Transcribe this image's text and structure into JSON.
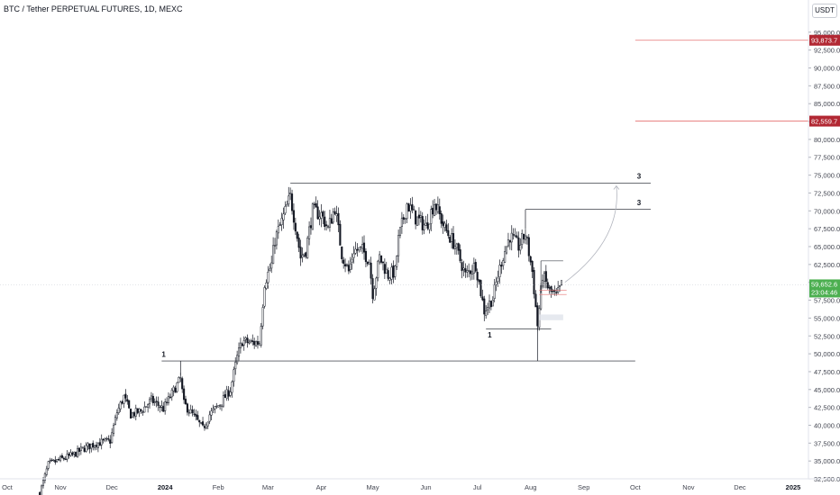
{
  "header": {
    "title": "BTC / Tether PERPETUAL FUTURES, 1D, MEXC",
    "currency_button": "USDT"
  },
  "colors": {
    "up": "#131722",
    "down": "#131722",
    "level_line": "#e57373",
    "level_tag": "#b22833",
    "price_tag": "#4caf50"
  },
  "chart_data": {
    "type": "candlestick",
    "symbol": "BTC / Tether PERPETUAL FUTURES",
    "interval": "1D",
    "exchange": "MEXC",
    "ylim": [
      31500,
      98500
    ],
    "x_ticks": [
      {
        "label": "Oct",
        "date": "2023-10-01"
      },
      {
        "label": "Nov",
        "date": "2023-11-01"
      },
      {
        "label": "Dec",
        "date": "2023-12-01"
      },
      {
        "label": "2024",
        "date": "2024-01-01",
        "bold": true
      },
      {
        "label": "Feb",
        "date": "2024-02-01"
      },
      {
        "label": "Mar",
        "date": "2024-03-01"
      },
      {
        "label": "Apr",
        "date": "2024-04-01"
      },
      {
        "label": "May",
        "date": "2024-05-01"
      },
      {
        "label": "Jun",
        "date": "2024-06-01"
      },
      {
        "label": "Jul",
        "date": "2024-07-01"
      },
      {
        "label": "Aug",
        "date": "2024-08-01"
      },
      {
        "label": "Sep",
        "date": "2024-09-01"
      },
      {
        "label": "Oct",
        "date": "2024-10-01"
      },
      {
        "label": "Nov",
        "date": "2024-11-01"
      },
      {
        "label": "Dec",
        "date": "2024-12-01"
      },
      {
        "label": "2025",
        "date": "2025-01-01",
        "bold": true
      }
    ],
    "y_ticks": [
      "32,500.0",
      "35,000.0",
      "37,500.0",
      "40,000.0",
      "42,500.0",
      "45,000.0",
      "47,500.0",
      "50,000.0",
      "52,500.0",
      "55,000.0",
      "57,500.0",
      "60,000.0",
      "62,500.0",
      "65,000.0",
      "67,500.0",
      "70,000.0",
      "72,500.0",
      "75,000.0",
      "77,500.0",
      "80,000.0",
      "82,500.0",
      "85,000.0",
      "87,500.0",
      "90,000.0",
      "92,500.0",
      "95,000.0"
    ],
    "close_path": [
      [
        "2023-10-20",
        30500
      ],
      [
        "2023-10-25",
        34500
      ],
      [
        "2023-11-01",
        35200
      ],
      [
        "2023-11-08",
        35800
      ],
      [
        "2023-11-15",
        36800
      ],
      [
        "2023-11-22",
        37500
      ],
      [
        "2023-11-30",
        37800
      ],
      [
        "2023-12-04",
        41800
      ],
      [
        "2023-12-08",
        44000
      ],
      [
        "2023-12-12",
        41500
      ],
      [
        "2023-12-18",
        42000
      ],
      [
        "2023-12-24",
        43500
      ],
      [
        "2023-12-31",
        42300
      ],
      [
        "2024-01-04",
        44000
      ],
      [
        "2024-01-10",
        46500
      ],
      [
        "2024-01-12",
        43000
      ],
      [
        "2024-01-18",
        41200
      ],
      [
        "2024-01-23",
        39500
      ],
      [
        "2024-01-27",
        41500
      ],
      [
        "2024-02-02",
        43000
      ],
      [
        "2024-02-08",
        45000
      ],
      [
        "2024-02-12",
        49500
      ],
      [
        "2024-02-15",
        51800
      ],
      [
        "2024-02-20",
        51500
      ],
      [
        "2024-02-25",
        51600
      ],
      [
        "2024-02-28",
        60000
      ],
      [
        "2024-03-03",
        62500
      ],
      [
        "2024-03-05",
        66000
      ],
      [
        "2024-03-09",
        68500
      ],
      [
        "2024-03-14",
        72000
      ],
      [
        "2024-03-17",
        68000
      ],
      [
        "2024-03-20",
        63500
      ],
      [
        "2024-03-23",
        64500
      ],
      [
        "2024-03-27",
        70000
      ],
      [
        "2024-04-01",
        69500
      ],
      [
        "2024-04-05",
        67500
      ],
      [
        "2024-04-09",
        70500
      ],
      [
        "2024-04-13",
        64000
      ],
      [
        "2024-04-17",
        61500
      ],
      [
        "2024-04-20",
        64500
      ],
      [
        "2024-04-25",
        64500
      ],
      [
        "2024-04-29",
        63000
      ],
      [
        "2024-05-01",
        58500
      ],
      [
        "2024-05-05",
        63500
      ],
      [
        "2024-05-10",
        61000
      ],
      [
        "2024-05-14",
        61500
      ],
      [
        "2024-05-16",
        66000
      ],
      [
        "2024-05-21",
        71000
      ],
      [
        "2024-05-26",
        69000
      ],
      [
        "2024-06-01",
        67800
      ],
      [
        "2024-06-06",
        71200
      ],
      [
        "2024-06-12",
        67500
      ],
      [
        "2024-06-18",
        65200
      ],
      [
        "2024-06-24",
        61000
      ],
      [
        "2024-06-30",
        62500
      ],
      [
        "2024-07-05",
        56000
      ],
      [
        "2024-07-10",
        57800
      ],
      [
        "2024-07-15",
        63000
      ],
      [
        "2024-07-20",
        66500
      ],
      [
        "2024-07-25",
        65000
      ],
      [
        "2024-07-29",
        66800
      ],
      [
        "2024-08-02",
        61500
      ],
      [
        "2024-08-05",
        54000
      ],
      [
        "2024-08-08",
        61000
      ],
      [
        "2024-08-12",
        58800
      ],
      [
        "2024-08-16",
        58000
      ],
      [
        "2024-08-19",
        59652
      ]
    ],
    "last_price": "59,652.6",
    "countdown": "23:04:46",
    "price_levels": [
      {
        "label": "93,873.7",
        "price": 93873.7
      },
      {
        "label": "82,559.7",
        "price": 82559.7
      }
    ],
    "annotations": {
      "label_1a": "1",
      "label_1b": "1",
      "label_3a": "3",
      "label_3b": "3"
    },
    "drawn_lines": [
      {
        "price": 73900,
        "from": "2024-03-14",
        "to": "2024-10-10"
      },
      {
        "price": 70200,
        "from": "2024-07-29",
        "to": "2024-10-10"
      },
      {
        "price": 49000,
        "from": "2023-12-30",
        "to": "2024-10-01"
      },
      {
        "price": 53500,
        "from": "2024-07-06",
        "to": "2024-08-13"
      }
    ]
  }
}
